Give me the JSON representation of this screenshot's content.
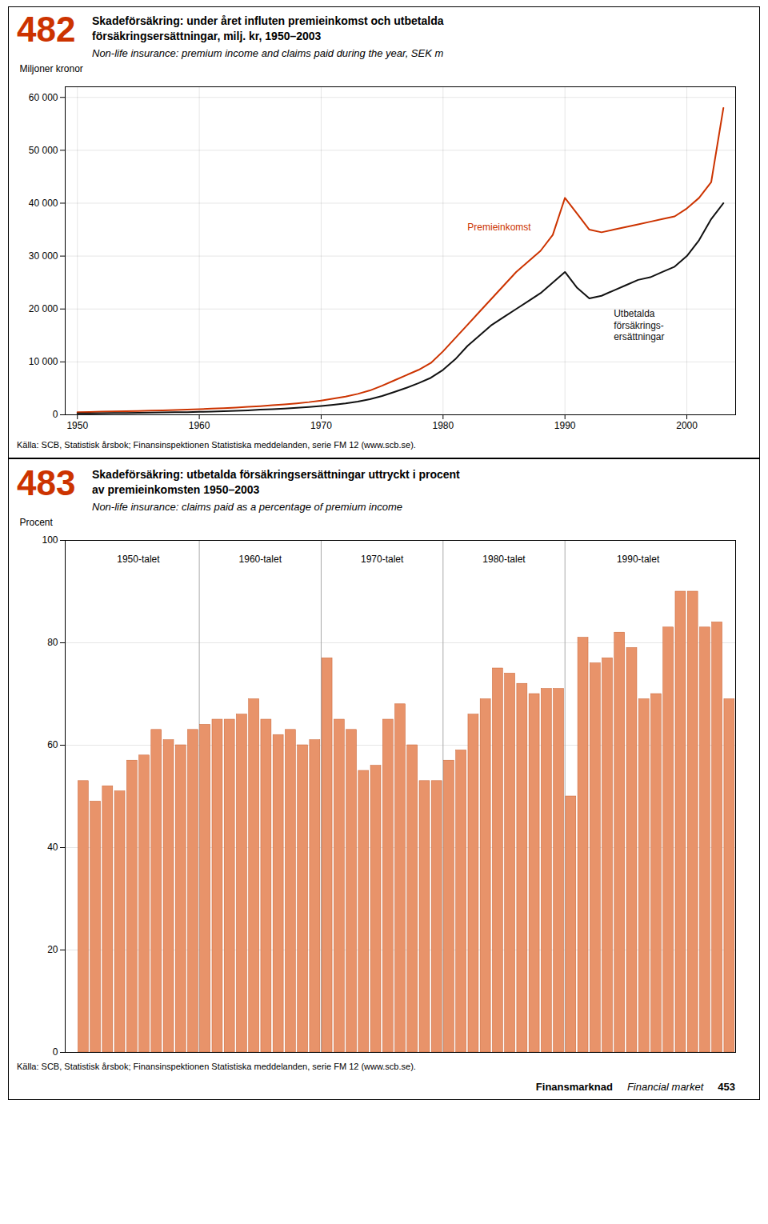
{
  "chart_data": [
    {
      "type": "line",
      "number": "482",
      "title": "Skadeförsäkring: under året influten premieinkomst och utbetalda\nförsäkringsersättningar, milj. kr, 1950–2003",
      "subtitle": "Non-life insurance: premium income and claims paid during the year, SEK m",
      "ylabel": "Miljoner kronor",
      "source": "Källa: SCB, Statistisk årsbok; Finansinspektionen Statistiska meddelanden, serie FM 12 (www.scb.se).",
      "x": [
        1950,
        1951,
        1952,
        1953,
        1954,
        1955,
        1956,
        1957,
        1958,
        1959,
        1960,
        1961,
        1962,
        1963,
        1964,
        1965,
        1966,
        1967,
        1968,
        1969,
        1970,
        1971,
        1972,
        1973,
        1974,
        1975,
        1976,
        1977,
        1978,
        1979,
        1980,
        1981,
        1982,
        1983,
        1984,
        1985,
        1986,
        1987,
        1988,
        1989,
        1990,
        1991,
        1992,
        1993,
        1994,
        1995,
        1996,
        1997,
        1998,
        1999,
        2000,
        2001,
        2002,
        2003
      ],
      "series": [
        {
          "name": "Premieinkomst",
          "color": "#CC3300",
          "label_x": 1982,
          "label_y": 35500,
          "values": [
            500,
            540,
            590,
            630,
            680,
            730,
            790,
            850,
            920,
            990,
            1070,
            1160,
            1260,
            1370,
            1500,
            1640,
            1800,
            1980,
            2170,
            2400,
            2700,
            3050,
            3450,
            3950,
            4600,
            5500,
            6500,
            7500,
            8500,
            9800,
            12000,
            14500,
            17000,
            19500,
            22000,
            24500,
            27000,
            29000,
            31000,
            34000,
            41000,
            38000,
            35000,
            34500,
            35000,
            35500,
            36000,
            36500,
            37000,
            37500,
            39000,
            41000,
            44000,
            58000
          ]
        },
        {
          "name": "Utbetalda\nförsäkrings-\nersättningar",
          "color": "#111111",
          "label_x": 1994,
          "label_y": 20000,
          "values": [
            280,
            265,
            305,
            330,
            350,
            370,
            400,
            440,
            480,
            510,
            560,
            610,
            680,
            760,
            850,
            970,
            1060,
            1180,
            1310,
            1460,
            1650,
            1880,
            2150,
            2500,
            2950,
            3550,
            4300,
            5100,
            6000,
            7000,
            8500,
            10500,
            13000,
            15000,
            17000,
            18500,
            20000,
            21500,
            23000,
            25000,
            27000,
            24000,
            22000,
            22500,
            23500,
            24500,
            25500,
            26000,
            27000,
            28000,
            30000,
            33000,
            37000,
            40000
          ]
        }
      ],
      "xlim": [
        1949,
        2004
      ],
      "xticks": [
        1950,
        1960,
        1970,
        1980,
        1990,
        2000
      ],
      "ylim": [
        0,
        62000
      ],
      "yticks": [
        0,
        {
          "value": 10000,
          "label": "10 000"
        },
        {
          "value": 20000,
          "label": "20 000"
        },
        {
          "value": 30000,
          "label": "30 000"
        },
        {
          "value": 40000,
          "label": "40 000"
        },
        {
          "value": 50000,
          "label": "50 000"
        },
        {
          "value": 60000,
          "label": "60 000"
        }
      ],
      "grid": true
    },
    {
      "type": "bar",
      "number": "483",
      "title": "Skadeförsäkring: utbetalda försäkringsersättningar uttryckt i procent\nav premieinkomsten 1950–2003",
      "subtitle": "Non-life insurance: claims paid as a percentage of premium income",
      "ylabel": "Procent",
      "source": "Källa: SCB, Statistisk årsbok; Finansinspektionen Statistiska meddelanden, serie FM 12 (www.scb.se).",
      "x": [
        1950,
        1951,
        1952,
        1953,
        1954,
        1955,
        1956,
        1957,
        1958,
        1959,
        1960,
        1961,
        1962,
        1963,
        1964,
        1965,
        1966,
        1967,
        1968,
        1969,
        1970,
        1971,
        1972,
        1973,
        1974,
        1975,
        1976,
        1977,
        1978,
        1979,
        1980,
        1981,
        1982,
        1983,
        1984,
        1985,
        1986,
        1987,
        1988,
        1989,
        1990,
        1991,
        1992,
        1993,
        1994,
        1995,
        1996,
        1997,
        1998,
        1999,
        2000,
        2001,
        2002,
        2003
      ],
      "values": [
        53,
        49,
        52,
        51,
        57,
        58,
        63,
        61,
        60,
        63,
        64,
        65,
        65,
        66,
        69,
        65,
        62,
        63,
        60,
        61,
        77,
        65,
        63,
        55,
        56,
        65,
        68,
        60,
        53,
        53,
        57,
        59,
        66,
        69,
        75,
        74,
        72,
        70,
        71,
        71,
        50,
        81,
        76,
        77,
        82,
        79,
        69,
        70,
        83,
        90,
        90,
        83,
        84,
        69
      ],
      "color": "#E8936A",
      "xlim": [
        1948.5,
        2003.5
      ],
      "ylim": [
        0,
        100
      ],
      "yticks": [
        0,
        20,
        40,
        60,
        80,
        100
      ],
      "grid": true,
      "tick_labels": "y",
      "vlines": [
        1959.5,
        1969.5,
        1979.5,
        1989.5
      ],
      "annotations": [
        {
          "text": "1950-talet",
          "x": 1954.5,
          "y": 97
        },
        {
          "text": "1960-talet",
          "x": 1964.5,
          "y": 97
        },
        {
          "text": "1970-talet",
          "x": 1974.5,
          "y": 97
        },
        {
          "text": "1980-talet",
          "x": 1984.5,
          "y": 97
        },
        {
          "text": "1990-talet",
          "x": 1995.5,
          "y": 97
        }
      ]
    }
  ],
  "footer": [
    "Finansmarknad",
    "Financial market",
    "453"
  ]
}
